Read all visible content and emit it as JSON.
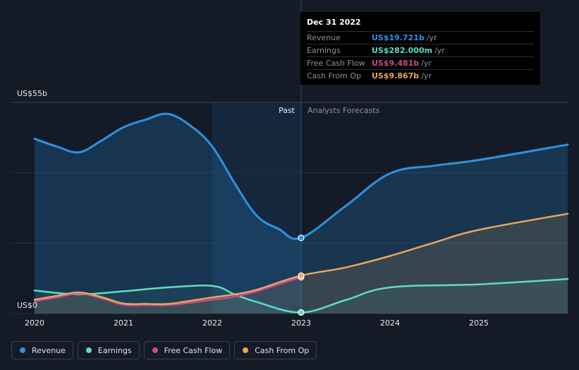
{
  "colors": {
    "revenue": "#2b93e4",
    "earnings": "#5fdcc4",
    "free_cash_flow": "#c84b8e",
    "cash_from_op": "#e8a75a",
    "background": "#151b26"
  },
  "tooltip": {
    "date": "Dec 31 2022",
    "rows": [
      {
        "label": "Revenue",
        "value": "US$19.721b",
        "unit": "/yr",
        "color": "#2b93e4"
      },
      {
        "label": "Earnings",
        "value": "US$282.000m",
        "unit": "/yr",
        "color": "#5fdcc4"
      },
      {
        "label": "Free Cash Flow",
        "value": "US$9.481b",
        "unit": "/yr",
        "color": "#c84b8e"
      },
      {
        "label": "Cash From Op",
        "value": "US$9.867b",
        "unit": "/yr",
        "color": "#e8a75a"
      }
    ]
  },
  "legend": [
    {
      "label": "Revenue",
      "color": "#2b93e4"
    },
    {
      "label": "Earnings",
      "color": "#5fdcc4"
    },
    {
      "label": "Free Cash Flow",
      "color": "#c84b8e"
    },
    {
      "label": "Cash From Op",
      "color": "#e8a75a"
    }
  ],
  "chart_data": {
    "type": "line",
    "title": "",
    "ylabel": "",
    "y_axis_labels": {
      "top": "US$55b",
      "bottom": "US$0"
    },
    "ylim": [
      0,
      55
    ],
    "xlim": [
      2020,
      2026
    ],
    "x_ticks": [
      2020,
      2021,
      2022,
      2023,
      2024,
      2025
    ],
    "x_tick_labels": [
      "2020",
      "2021",
      "2022",
      "2023",
      "2024",
      "2025"
    ],
    "divider_x": 2023,
    "past_label": "Past",
    "forecast_label": "Analysts Forecasts",
    "series": [
      {
        "name": "Revenue",
        "key": "revenue",
        "points": [
          [
            2020,
            45.5
          ],
          [
            2020.25,
            43.5
          ],
          [
            2020.5,
            42
          ],
          [
            2020.75,
            45
          ],
          [
            2021,
            48.5
          ],
          [
            2021.25,
            50.5
          ],
          [
            2021.5,
            52
          ],
          [
            2021.75,
            49
          ],
          [
            2022,
            43.5
          ],
          [
            2022.25,
            34
          ],
          [
            2022.5,
            25.5
          ],
          [
            2022.75,
            22
          ],
          [
            2023,
            19.72
          ],
          [
            2023.5,
            28
          ],
          [
            2024,
            36.5
          ],
          [
            2024.5,
            38.5
          ],
          [
            2025,
            40
          ],
          [
            2026,
            44
          ]
        ]
      },
      {
        "name": "Earnings",
        "key": "earnings",
        "points": [
          [
            2020,
            6
          ],
          [
            2020.5,
            5
          ],
          [
            2021,
            5.8
          ],
          [
            2021.5,
            6.8
          ],
          [
            2022,
            7.2
          ],
          [
            2022.25,
            5
          ],
          [
            2022.5,
            3
          ],
          [
            2023,
            0.282
          ],
          [
            2023.5,
            3.5
          ],
          [
            2024,
            6.8
          ],
          [
            2025,
            7.6
          ],
          [
            2026,
            9
          ]
        ]
      },
      {
        "name": "Free Cash Flow",
        "key": "free_cash_flow",
        "points": [
          [
            2020,
            3.2
          ],
          [
            2020.25,
            4.2
          ],
          [
            2020.5,
            5.2
          ],
          [
            2020.75,
            4
          ],
          [
            2021,
            2.3
          ],
          [
            2021.25,
            2.2
          ],
          [
            2021.5,
            2.2
          ],
          [
            2021.75,
            2.8
          ],
          [
            2022,
            3.6
          ],
          [
            2022.25,
            4.4
          ],
          [
            2022.5,
            5.8
          ],
          [
            2023,
            9.48
          ]
        ]
      },
      {
        "name": "Cash From Op",
        "key": "cash_from_op",
        "points": [
          [
            2020,
            3.6
          ],
          [
            2020.25,
            4.6
          ],
          [
            2020.5,
            5.5
          ],
          [
            2020.75,
            4.3
          ],
          [
            2021,
            2.6
          ],
          [
            2021.25,
            2.5
          ],
          [
            2021.5,
            2.5
          ],
          [
            2021.75,
            3.3
          ],
          [
            2022,
            4.2
          ],
          [
            2022.25,
            5
          ],
          [
            2022.5,
            6.2
          ],
          [
            2023,
            9.87
          ],
          [
            2023.5,
            12
          ],
          [
            2024,
            15
          ],
          [
            2024.5,
            18.5
          ],
          [
            2025,
            21.8
          ],
          [
            2026,
            26
          ]
        ]
      }
    ]
  }
}
